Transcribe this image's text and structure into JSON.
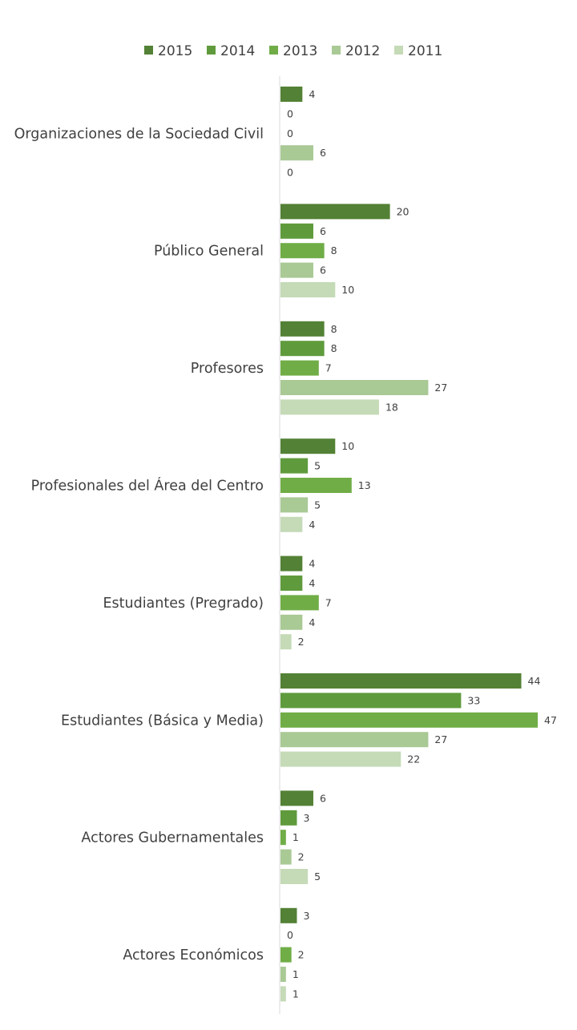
{
  "chart_data": {
    "type": "bar",
    "orientation": "horizontal",
    "title": "",
    "xlabel": "",
    "ylabel": "",
    "grid": false,
    "legend_position": "top",
    "data_labels": true,
    "xlim": [
      0,
      47
    ],
    "categories": [
      "Organizaciones de la Sociedad Civil",
      "Público General",
      "Profesores",
      "Profesionales del Área del Centro",
      "Estudiantes (Pregrado)",
      "Estudiantes (Básica y Media)",
      "Actores Gubernamentales",
      "Actores Económicos"
    ],
    "series": [
      {
        "name": "2015",
        "color": "#538135",
        "values": [
          4,
          20,
          8,
          10,
          4,
          44,
          6,
          3
        ]
      },
      {
        "name": "2014",
        "color": "#5f9b3c",
        "values": [
          0,
          6,
          8,
          5,
          4,
          33,
          3,
          0
        ]
      },
      {
        "name": "2013",
        "color": "#70ad47",
        "values": [
          0,
          8,
          7,
          13,
          7,
          47,
          1,
          2
        ]
      },
      {
        "name": "2012",
        "color": "#a9c995",
        "values": [
          6,
          6,
          27,
          5,
          4,
          27,
          2,
          1
        ]
      },
      {
        "name": "2011",
        "color": "#c5dab7",
        "values": [
          0,
          10,
          18,
          4,
          2,
          22,
          5,
          1
        ]
      }
    ],
    "axis_color": "#d9d9d9"
  }
}
